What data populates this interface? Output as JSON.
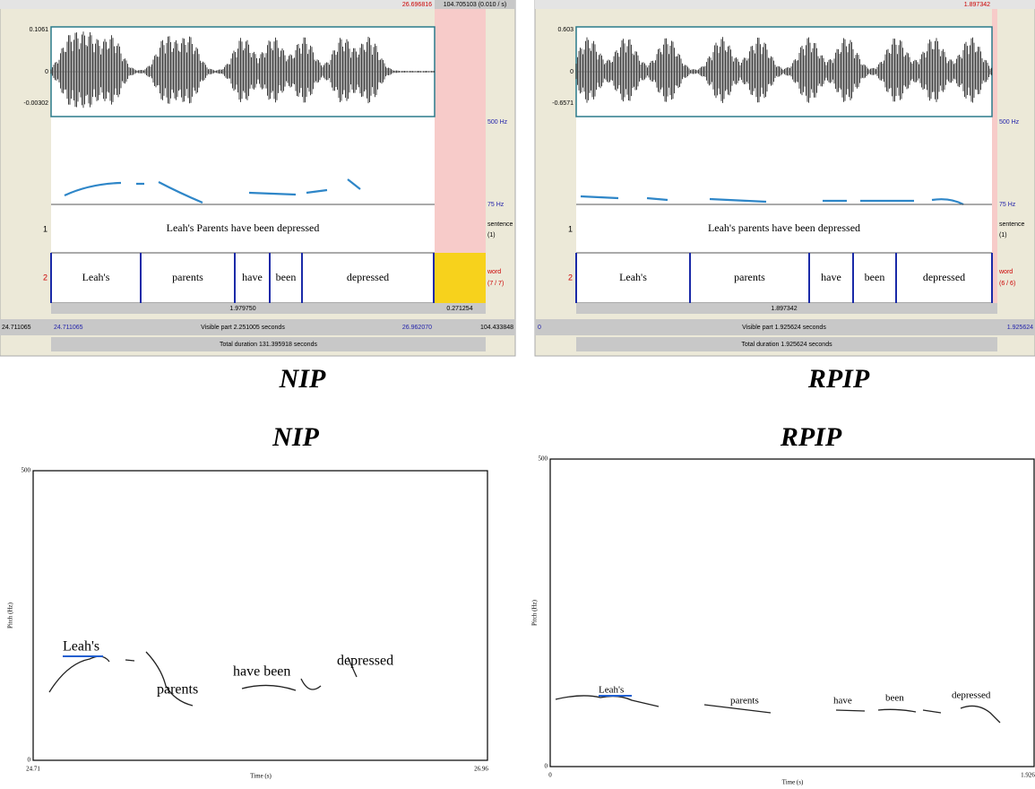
{
  "panels": [
    {
      "header": [
        "26.696816",
        "104.705103 (0.010 / s)"
      ],
      "wave_y": [
        "0.1061",
        "0",
        "-0.00302"
      ],
      "pitch_range": [
        "500 Hz",
        "75 Hz"
      ],
      "tier_numbers": [
        "1",
        "2"
      ],
      "sentence": "Leah's Parents have been depressed",
      "sentence_tier": [
        "sentence",
        "(1)"
      ],
      "words": [
        "Leah's",
        "parents",
        "have",
        "been",
        "depressed"
      ],
      "word_tier": [
        "word",
        "(7 / 7)"
      ],
      "durations": [
        "1.979750",
        "0.271254"
      ],
      "bottom_row": [
        "24.711065",
        "24.711065",
        "Visible part 2.251005 seconds",
        "26.962070",
        "104.433848"
      ],
      "total": "Total duration 131.395918 seconds",
      "caption": "NIP"
    },
    {
      "header": [
        "1.897342"
      ],
      "wave_y": [
        "0.603",
        "0",
        "-0.6571"
      ],
      "pitch_range": [
        "500 Hz",
        "75 Hz"
      ],
      "tier_numbers": [
        "1",
        "2"
      ],
      "sentence": "Leah's parents have been depressed",
      "sentence_tier": [
        "sentence",
        "(1)"
      ],
      "words": [
        "Leah's",
        "parents",
        "have",
        "been",
        "depressed"
      ],
      "word_tier": [
        "word",
        "(6 / 6)"
      ],
      "durations": [
        "1.897342"
      ],
      "bottom_row": [
        "0",
        "Visible part 1.925624 seconds",
        "1.925624"
      ],
      "total": "Total duration 1.925624 seconds",
      "caption": "RPIP"
    }
  ],
  "plots": [
    {
      "title": "NIP",
      "y_labels": [
        "500",
        "0"
      ],
      "x_labels": [
        "24.71",
        "26.96"
      ],
      "y_title": "Pitch (Hz)",
      "x_title": "Time (s)",
      "annotations": [
        "Leah's",
        "parents",
        "have been",
        "depressed"
      ]
    },
    {
      "title": "RPIP",
      "y_labels": [
        "500",
        "0"
      ],
      "x_labels": [
        "0",
        "1.926"
      ],
      "y_title": "Pitch (Hz)",
      "x_title": "Time (s)",
      "annotations": [
        "Leah's",
        "parents",
        "have",
        "been",
        "depressed"
      ]
    }
  ]
}
